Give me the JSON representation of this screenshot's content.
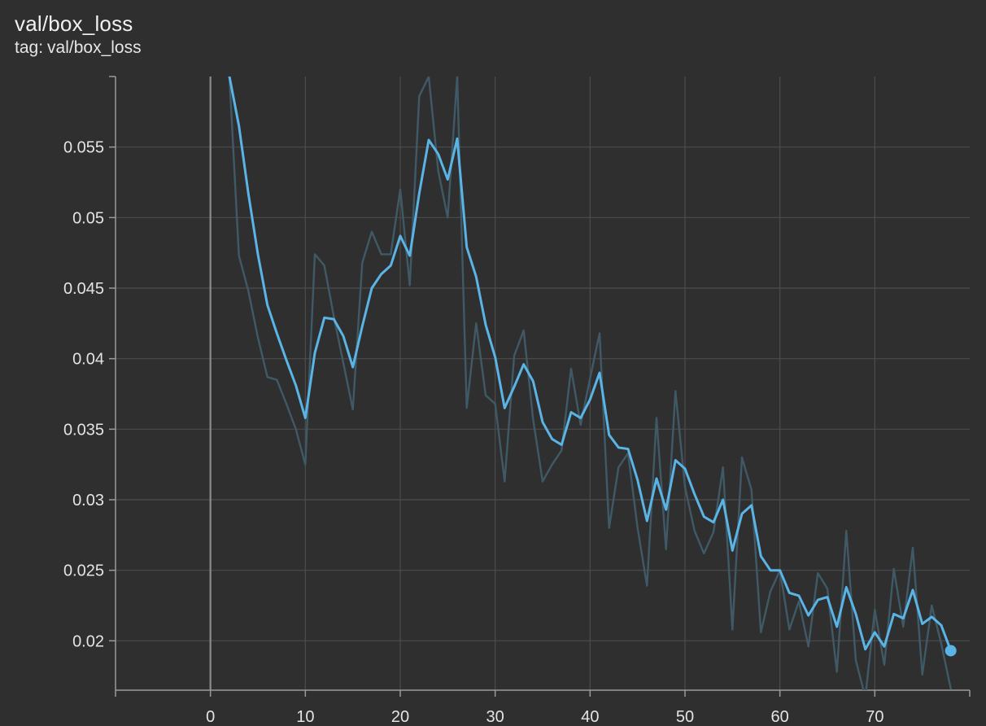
{
  "card": {
    "title": "val/box_loss",
    "tag_prefix": "tag:",
    "tag_value": "val/box_loss"
  },
  "colors": {
    "background": "#2f2f2f",
    "grid": "#4d4d4d",
    "axis": "#9a9a9a",
    "zero_line": "#8c8c8c",
    "smoothed": "#5ab4e6",
    "raw": "#3f5a66"
  },
  "chart_data": {
    "type": "line",
    "title": "val/box_loss",
    "xlabel": "",
    "ylabel": "",
    "xlim": [
      -10,
      80
    ],
    "ylim": [
      0.0165,
      0.06
    ],
    "x_ticks": [
      0,
      10,
      20,
      30,
      40,
      50,
      60,
      70
    ],
    "y_ticks": [
      0.02,
      0.025,
      0.03,
      0.035,
      0.04,
      0.045,
      0.05,
      0.055
    ],
    "y_tick_labels": [
      "0.02",
      "0.025",
      "0.03",
      "0.035",
      "0.04",
      "0.045",
      "0.05",
      "0.055"
    ],
    "grid": true,
    "x": [
      2,
      3,
      4,
      5,
      6,
      7,
      8,
      9,
      10,
      11,
      12,
      13,
      14,
      15,
      16,
      17,
      18,
      19,
      20,
      21,
      22,
      23,
      24,
      25,
      26,
      27,
      28,
      29,
      30,
      31,
      32,
      33,
      34,
      35,
      36,
      37,
      38,
      39,
      40,
      41,
      42,
      43,
      44,
      45,
      46,
      47,
      48,
      49,
      50,
      51,
      52,
      53,
      54,
      55,
      56,
      57,
      58,
      59,
      60,
      61,
      62,
      63,
      64,
      65,
      66,
      67,
      68,
      69,
      70,
      71,
      72,
      73,
      74,
      75,
      76,
      77,
      78
    ],
    "series": [
      {
        "role": "raw",
        "values": [
          0.06,
          0.0473,
          0.0448,
          0.0415,
          0.0387,
          0.0385,
          0.0368,
          0.035,
          0.0325,
          0.0474,
          0.0466,
          0.043,
          0.0397,
          0.0364,
          0.0468,
          0.049,
          0.0474,
          0.0474,
          0.052,
          0.0452,
          0.0586,
          0.06,
          0.0533,
          0.05,
          0.06,
          0.0365,
          0.0425,
          0.0374,
          0.0368,
          0.0313,
          0.0402,
          0.042,
          0.0357,
          0.0313,
          0.0325,
          0.0335,
          0.0393,
          0.0353,
          0.0386,
          0.0418,
          0.028,
          0.0323,
          0.0333,
          0.028,
          0.0239,
          0.0358,
          0.0265,
          0.0377,
          0.0309,
          0.0278,
          0.0262,
          0.0277,
          0.0323,
          0.0208,
          0.033,
          0.0307,
          0.0206,
          0.0235,
          0.025,
          0.0208,
          0.0228,
          0.0196,
          0.0248,
          0.0237,
          0.0178,
          0.0278,
          0.0186,
          0.016,
          0.0222,
          0.0183,
          0.0251,
          0.021,
          0.0266,
          0.0176,
          0.0225,
          0.0198,
          0.0166
        ]
      },
      {
        "role": "smoothed",
        "values": [
          0.06,
          0.0565,
          0.0517,
          0.0474,
          0.0438,
          0.0418,
          0.0399,
          0.0381,
          0.0358,
          0.0404,
          0.0429,
          0.0428,
          0.0416,
          0.0394,
          0.0423,
          0.045,
          0.046,
          0.0466,
          0.0487,
          0.0473,
          0.0517,
          0.0555,
          0.0545,
          0.0527,
          0.0556,
          0.0479,
          0.0458,
          0.0424,
          0.0401,
          0.0365,
          0.038,
          0.0396,
          0.0384,
          0.0355,
          0.0343,
          0.0339,
          0.0362,
          0.0358,
          0.0371,
          0.039,
          0.0346,
          0.0337,
          0.0336,
          0.0314,
          0.0285,
          0.0315,
          0.0293,
          0.0328,
          0.0322,
          0.0304,
          0.0288,
          0.0284,
          0.03,
          0.0264,
          0.029,
          0.0296,
          0.026,
          0.025,
          0.025,
          0.0234,
          0.0232,
          0.0218,
          0.0229,
          0.0231,
          0.021,
          0.0238,
          0.0219,
          0.0194,
          0.0206,
          0.0196,
          0.0219,
          0.0216,
          0.0236,
          0.0212,
          0.0217,
          0.0211,
          0.0193
        ]
      }
    ]
  }
}
